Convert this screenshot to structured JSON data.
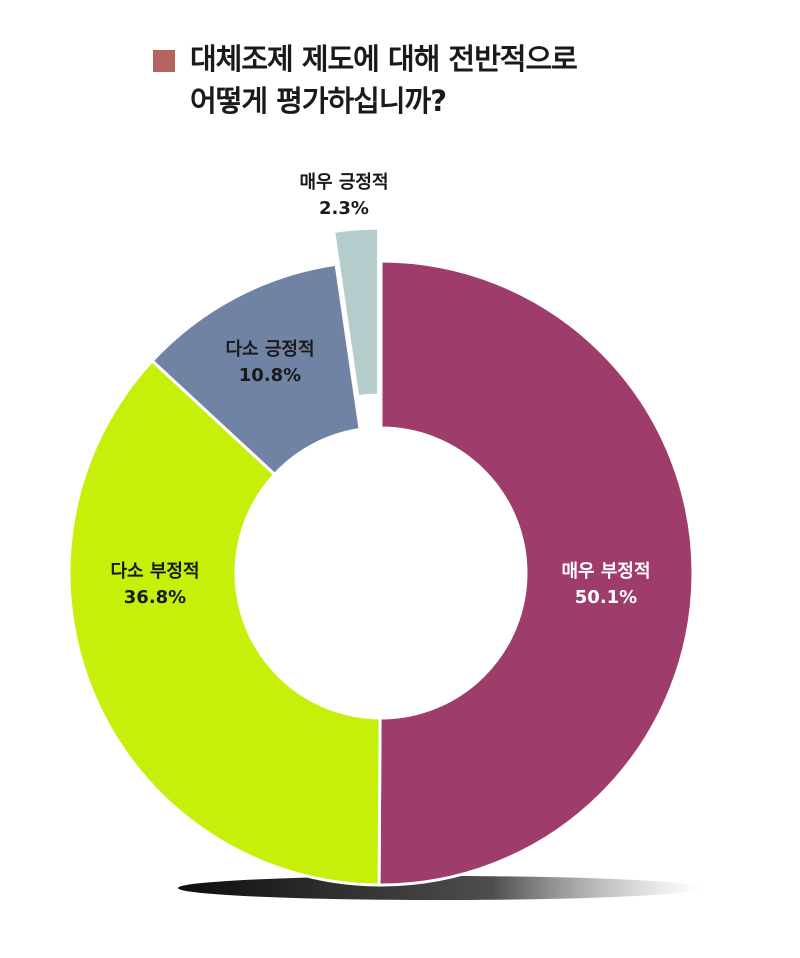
{
  "chart_data": {
    "type": "pie",
    "variant": "donut",
    "title_lines": [
      "대체조제 제도에 대해 전반적으로",
      "어떻게 평가하십니까?"
    ],
    "title_marker_color": "#b5635e",
    "slices": [
      {
        "label": "매우 부정적",
        "value": 50.1,
        "value_label": "50.1%",
        "color": "#9e3c6c",
        "text_color": "#ffffff",
        "exploded": false
      },
      {
        "label": "다소 부정적",
        "value": 36.8,
        "value_label": "36.8%",
        "color": "#c6ef0a",
        "text_color": "#1a1a1a",
        "exploded": false
      },
      {
        "label": "다소 긍정적",
        "value": 10.8,
        "value_label": "10.8%",
        "color": "#7183a4",
        "text_color": "#1a1a1a",
        "exploded": false
      },
      {
        "label": "매우 긍정적",
        "value": 2.3,
        "value_label": "2.3%",
        "color": "#b5cccc",
        "text_color": "#1a1a1a",
        "exploded": true
      }
    ],
    "start": "12 o'clock",
    "direction": "clockwise"
  }
}
